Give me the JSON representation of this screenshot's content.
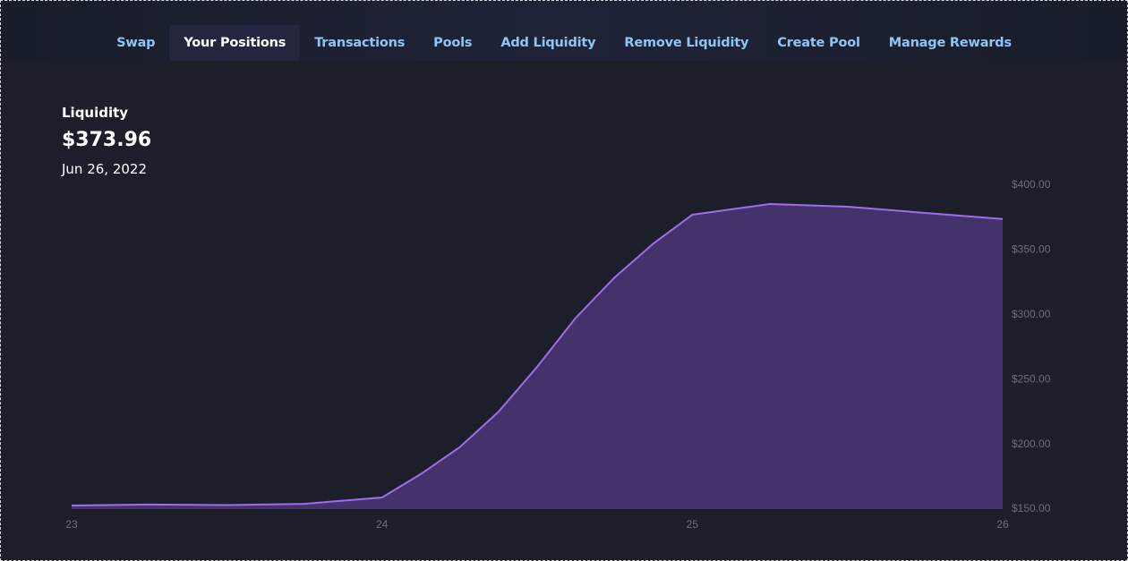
{
  "nav": {
    "items": [
      "Swap",
      "Your Positions",
      "Transactions",
      "Pools",
      "Add Liquidity",
      "Remove Liquidity",
      "Create Pool",
      "Manage Rewards"
    ],
    "active": 1
  },
  "header": {
    "label": "Liquidity",
    "value": "$373.96",
    "date": "Jun 26, 2022"
  },
  "chart_data": {
    "type": "area",
    "x": [
      23,
      23.25,
      23.5,
      23.75,
      24,
      24.125,
      24.25,
      24.375,
      24.5,
      24.625,
      24.75,
      24.875,
      25,
      25.25,
      25.5,
      25.75,
      26
    ],
    "values": [
      152.8,
      153.5,
      153.1,
      154.1,
      159,
      177,
      197.7,
      225,
      259.8,
      297.8,
      328.9,
      355.1,
      377.2,
      385.5,
      383.4,
      378.6,
      373.96
    ],
    "color": "#9f6cf0",
    "fill": "#44336b",
    "xlim": [
      23,
      26
    ],
    "xticks": [
      23,
      24,
      25,
      26
    ],
    "ylim": [
      150,
      400
    ],
    "yticks": [
      {
        "value": 150,
        "label": "$150.00"
      },
      {
        "value": 200,
        "label": "$200.00"
      },
      {
        "value": 250,
        "label": "$250.00"
      },
      {
        "value": 300,
        "label": "$300.00"
      },
      {
        "value": 350,
        "label": "$350.00"
      },
      {
        "value": 400,
        "label": "$400.00"
      }
    ]
  }
}
